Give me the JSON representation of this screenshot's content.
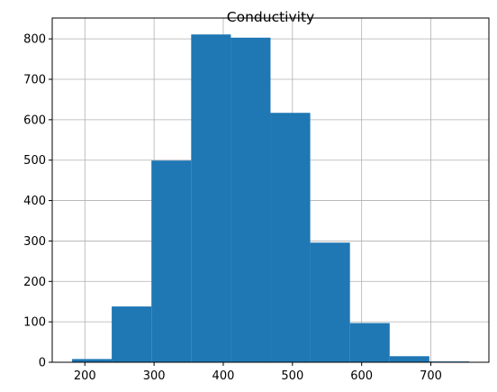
{
  "chart_data": {
    "type": "bar",
    "title": "Conductivity",
    "xlabel": "",
    "ylabel": "",
    "bin_edges": [
      181.5,
      238.8,
      296.2,
      353.6,
      411.0,
      468.3,
      525.7,
      583.1,
      640.5,
      697.8,
      755.2
    ],
    "values": [
      8,
      138,
      499,
      811,
      803,
      617,
      296,
      97,
      15,
      2
    ],
    "xlim": [
      152.8,
      783.9
    ],
    "ylim": [
      0,
      851.6
    ],
    "xticks": [
      200,
      300,
      400,
      500,
      600,
      700
    ],
    "yticks": [
      0,
      100,
      200,
      300,
      400,
      500,
      600,
      700,
      800
    ],
    "bar_color": "#1f77b4",
    "grid": true
  }
}
